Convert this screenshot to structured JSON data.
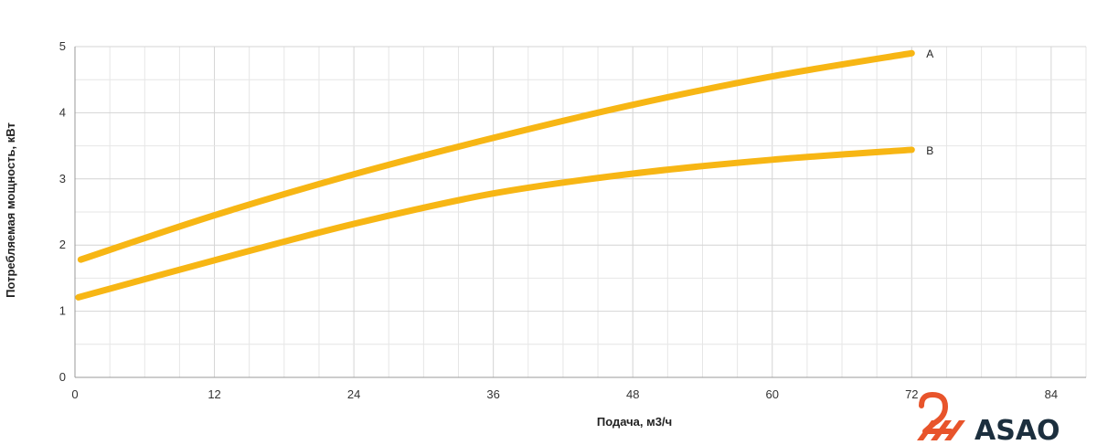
{
  "chart_data": {
    "type": "line",
    "xlabel": "Подача, м3/ч",
    "ylabel": "Потребляемая мощность, кВт",
    "xlim": [
      0,
      87
    ],
    "ylim": [
      0,
      5
    ],
    "x_ticks": [
      0,
      12,
      24,
      36,
      48,
      60,
      72,
      84
    ],
    "y_ticks": [
      0,
      1,
      2,
      3,
      4,
      5
    ],
    "x_tick_labels": [
      "0",
      "12",
      "24",
      "36",
      "48",
      "60",
      "72",
      "84"
    ],
    "y_tick_labels": [
      "0",
      "1",
      "2",
      "3",
      "4",
      "5"
    ],
    "grid": true,
    "series": [
      {
        "name": "A",
        "color": "#f7b614",
        "x": [
          0.5,
          12,
          24,
          36,
          48,
          60,
          72
        ],
        "y": [
          1.78,
          2.45,
          3.07,
          3.62,
          4.12,
          4.55,
          4.9
        ]
      },
      {
        "name": "B",
        "color": "#f7b614",
        "x": [
          0.3,
          12,
          24,
          36,
          48,
          60,
          72
        ],
        "y": [
          1.21,
          1.77,
          2.32,
          2.78,
          3.08,
          3.29,
          3.44
        ]
      }
    ]
  },
  "logo": {
    "text": "ASAO",
    "colors": {
      "primary": "#1c2f3e",
      "accent": "#e8542b"
    }
  }
}
